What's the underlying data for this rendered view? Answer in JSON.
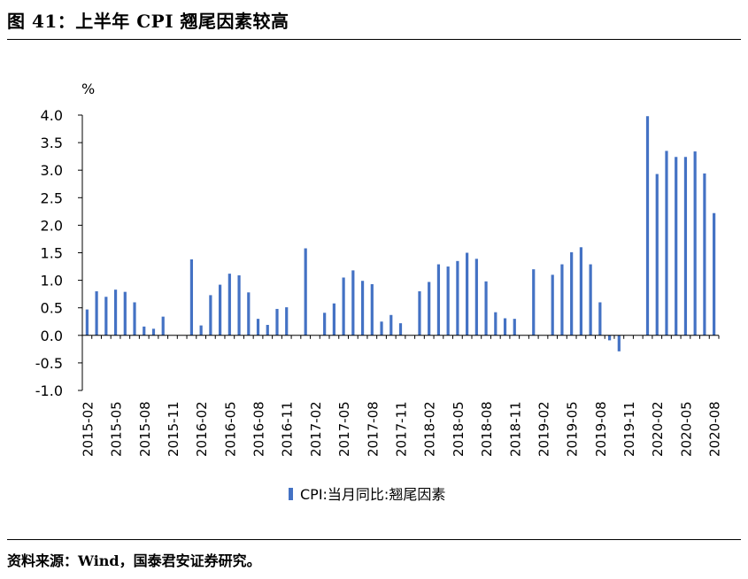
{
  "header": {
    "title": "图 41：上半年 CPI 翘尾因素较高"
  },
  "footer": {
    "source": "资料来源：Wind，国泰君安证券研究。"
  },
  "chart_data": {
    "type": "bar",
    "unit": "%",
    "title": "",
    "xlabel": "",
    "ylabel": "",
    "ylim": [
      -1.0,
      4.0
    ],
    "yticks": [
      "4.0",
      "3.5",
      "3.0",
      "2.5",
      "2.0",
      "1.5",
      "1.0",
      "0.5",
      "0.0",
      "-0.5",
      "-1.0"
    ],
    "xtick_labels": [
      "2015-02",
      "2015-05",
      "2015-08",
      "2015-11",
      "2016-02",
      "2016-05",
      "2016-08",
      "2016-11",
      "2017-02",
      "2017-05",
      "2017-08",
      "2017-11",
      "2018-02",
      "2018-05",
      "2018-08",
      "2018-11",
      "2019-02",
      "2019-05",
      "2019-08",
      "2019-11",
      "2020-02",
      "2020-05",
      "2020-08"
    ],
    "grid": false,
    "legend_position": "bottom",
    "bar_color": "#4472C4",
    "categories": [
      "2015-02",
      "2015-03",
      "2015-04",
      "2015-05",
      "2015-06",
      "2015-07",
      "2015-08",
      "2015-09",
      "2015-10",
      "2015-11",
      "2015-12",
      "2016-01",
      "2016-02",
      "2016-03",
      "2016-04",
      "2016-05",
      "2016-06",
      "2016-07",
      "2016-08",
      "2016-09",
      "2016-10",
      "2016-11",
      "2016-12",
      "2017-01",
      "2017-02",
      "2017-03",
      "2017-04",
      "2017-05",
      "2017-06",
      "2017-07",
      "2017-08",
      "2017-09",
      "2017-10",
      "2017-11",
      "2017-12",
      "2018-01",
      "2018-02",
      "2018-03",
      "2018-04",
      "2018-05",
      "2018-06",
      "2018-07",
      "2018-08",
      "2018-09",
      "2018-10",
      "2018-11",
      "2018-12",
      "2019-01",
      "2019-02",
      "2019-03",
      "2019-04",
      "2019-05",
      "2019-06",
      "2019-07",
      "2019-08",
      "2019-09",
      "2019-10",
      "2019-11",
      "2019-12",
      "2020-01",
      "2020-02",
      "2020-03",
      "2020-04",
      "2020-05",
      "2020-06",
      "2020-07",
      "2020-08"
    ],
    "series": [
      {
        "name": "CPI:当月同比:翘尾因素",
        "values": [
          0.47,
          0.8,
          0.7,
          0.83,
          0.79,
          0.6,
          0.16,
          0.12,
          0.34,
          null,
          null,
          1.38,
          0.18,
          0.73,
          0.92,
          1.12,
          1.09,
          0.78,
          0.3,
          0.19,
          0.48,
          0.51,
          null,
          1.58,
          null,
          0.41,
          0.58,
          1.05,
          1.18,
          0.99,
          0.93,
          0.25,
          0.37,
          0.22,
          null,
          0.8,
          0.97,
          1.29,
          1.25,
          1.35,
          1.5,
          1.39,
          0.98,
          0.42,
          0.31,
          0.3,
          null,
          1.2,
          null,
          1.1,
          1.29,
          1.51,
          1.6,
          1.29,
          0.6,
          -0.09,
          -0.29,
          null,
          null,
          3.98,
          2.93,
          3.35,
          3.24,
          3.24,
          3.34,
          2.94,
          2.22
        ]
      }
    ]
  }
}
